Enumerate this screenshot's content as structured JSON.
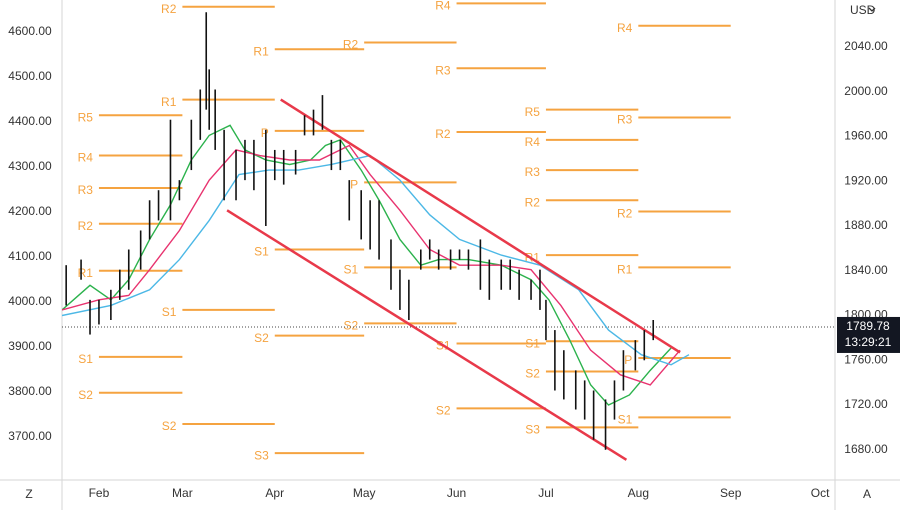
{
  "chart_data": {
    "type": "ohlc",
    "currency": "USD",
    "xlim": [
      18.6,
      278
    ],
    "xticks": [
      {
        "value": 31,
        "label": "Feb"
      },
      {
        "value": 59,
        "label": "Mar"
      },
      {
        "value": 90,
        "label": "Apr"
      },
      {
        "value": 120,
        "label": "May"
      },
      {
        "value": 151,
        "label": "Jun"
      },
      {
        "value": 181,
        "label": "Jul"
      },
      {
        "value": 212,
        "label": "Aug"
      },
      {
        "value": 243,
        "label": "Sep"
      },
      {
        "value": 273,
        "label": "Oct"
      }
    ],
    "ylim": [
      1653,
      2082
    ],
    "yticks": [
      {
        "value": 2040,
        "label": "2040.00"
      },
      {
        "value": 2000,
        "label": "2000.00"
      },
      {
        "value": 1960,
        "label": "1960.00"
      },
      {
        "value": 1920,
        "label": "1920.00"
      },
      {
        "value": 1880,
        "label": "1880.00"
      },
      {
        "value": 1840,
        "label": "1840.00"
      },
      {
        "value": 1800,
        "label": "1800.00"
      },
      {
        "value": 1760,
        "label": "1760.00"
      },
      {
        "value": 1720,
        "label": "1720.00"
      },
      {
        "value": 1680,
        "label": "1680.00"
      }
    ],
    "left_axis": {
      "ylim": [
        3604,
        4671
      ],
      "yticks": [
        {
          "value": 4600,
          "label": "4600.00"
        },
        {
          "value": 4500,
          "label": "4500.00"
        },
        {
          "value": 4400,
          "label": "4400.00"
        },
        {
          "value": 4300,
          "label": "4300.00"
        },
        {
          "value": 4200,
          "label": "4200.00"
        },
        {
          "value": 4100,
          "label": "4100.00"
        },
        {
          "value": 4000,
          "label": "4000.00"
        },
        {
          "value": 3900,
          "label": "3900.00"
        },
        {
          "value": 3800,
          "label": "3800.00"
        },
        {
          "value": 3700,
          "label": "3700.00"
        }
      ]
    },
    "bars": {
      "color": "#111111",
      "x": [
        20,
        25,
        28,
        31,
        35,
        38,
        41,
        45,
        48,
        51,
        55,
        58,
        62,
        65,
        67,
        68,
        70,
        73,
        77,
        80,
        83,
        87,
        90,
        93,
        97,
        100,
        103,
        106,
        109,
        112,
        115,
        119,
        122,
        125,
        129,
        132,
        135,
        139,
        142,
        145,
        149,
        152,
        155,
        159,
        162,
        166,
        169,
        172,
        176,
        179,
        181,
        184,
        187,
        191,
        194,
        197,
        201,
        204,
        207,
        211,
        214,
        217
      ],
      "high": [
        1845,
        1850,
        1814,
        1814,
        1823,
        1841,
        1859,
        1876,
        1903,
        1912,
        1975,
        1921,
        1975,
        2002,
        2071,
        2020,
        2002,
        1966,
        1948,
        1957,
        1957,
        1966,
        1948,
        1948,
        1948,
        1979,
        1984,
        1997,
        1957,
        1957,
        1921,
        1912,
        1903,
        1903,
        1868,
        1841,
        1832,
        1859,
        1868,
        1859,
        1859,
        1859,
        1859,
        1868,
        1850,
        1850,
        1850,
        1841,
        1832,
        1841,
        1814,
        1787,
        1769,
        1751,
        1742,
        1733,
        1725,
        1742,
        1769,
        1778,
        1787,
        1796
      ],
      "low": [
        1809,
        1832,
        1783,
        1792,
        1796,
        1814,
        1823,
        1841,
        1868,
        1885,
        1885,
        1903,
        1930,
        1957,
        1984,
        1966,
        1948,
        1903,
        1903,
        1921,
        1912,
        1880,
        1921,
        1917,
        1926,
        1961,
        1961,
        1966,
        1930,
        1930,
        1885,
        1868,
        1859,
        1850,
        1823,
        1805,
        1796,
        1841,
        1850,
        1841,
        1841,
        1850,
        1841,
        1823,
        1814,
        1823,
        1823,
        1814,
        1814,
        1805,
        1778,
        1733,
        1725,
        1716,
        1707,
        1689,
        1680,
        1707,
        1733,
        1751,
        1760,
        1778
      ]
    },
    "moving_averages": [
      {
        "color": "#2bb24c",
        "x": [
          18.6,
          28,
          35,
          41,
          48,
          55,
          62,
          68,
          75,
          80,
          87,
          95,
          102,
          107,
          112,
          119,
          125,
          132,
          139,
          145,
          155,
          166,
          176,
          182,
          189,
          196,
          202,
          209,
          216,
          223
        ],
        "values": [
          1805,
          1827,
          1814,
          1832,
          1868,
          1899,
          1939,
          1961,
          1970,
          1948,
          1939,
          1935,
          1939,
          1952,
          1957,
          1930,
          1903,
          1868,
          1845,
          1850,
          1850,
          1845,
          1832,
          1814,
          1778,
          1738,
          1720,
          1729,
          1751,
          1771
        ]
      },
      {
        "color": "#e8336f",
        "x": [
          18.6,
          31,
          41,
          48,
          58,
          68,
          77,
          85,
          95,
          105,
          115,
          122,
          132,
          142,
          152,
          166,
          176,
          186,
          196,
          206,
          216,
          226
        ],
        "values": [
          1805,
          1814,
          1818,
          1841,
          1876,
          1921,
          1948,
          1943,
          1939,
          1939,
          1952,
          1926,
          1894,
          1859,
          1845,
          1845,
          1841,
          1809,
          1769,
          1747,
          1738,
          1769
        ]
      },
      {
        "color": "#4cb8e6",
        "x": [
          18.6,
          35,
          48,
          58,
          68,
          78,
          88,
          98,
          109,
          122,
          132,
          142,
          152,
          166,
          179,
          192,
          202,
          213,
          223,
          229
        ],
        "values": [
          1800,
          1809,
          1823,
          1850,
          1885,
          1926,
          1930,
          1930,
          1935,
          1943,
          1921,
          1890,
          1868,
          1854,
          1845,
          1823,
          1787,
          1765,
          1756,
          1765
        ]
      }
    ],
    "channel": [
      {
        "color": "#e8394a",
        "x": [
          92,
          226
        ],
        "values": [
          1993,
          1767
        ]
      },
      {
        "color": "#e8394a",
        "x": [
          74,
          208
        ],
        "values": [
          1894,
          1671
        ]
      }
    ],
    "pivot_color": "#f5a340",
    "pivots": [
      {
        "label": "R5",
        "value": 1979,
        "x": [
          31,
          59
        ]
      },
      {
        "label": "R4",
        "value": 1943,
        "x": [
          31,
          59
        ]
      },
      {
        "label": "R3",
        "value": 1914,
        "x": [
          31,
          59
        ]
      },
      {
        "label": "R2",
        "value": 1882,
        "x": [
          31,
          59
        ]
      },
      {
        "label": "R1",
        "value": 1840,
        "x": [
          31,
          59
        ]
      },
      {
        "label": "S1",
        "value": 1763,
        "x": [
          31,
          59
        ]
      },
      {
        "label": "S2",
        "value": 1731,
        "x": [
          31,
          59
        ]
      },
      {
        "label": "R2",
        "value": 2076,
        "x": [
          59,
          90
        ]
      },
      {
        "label": "R1",
        "value": 1993,
        "x": [
          59,
          90
        ]
      },
      {
        "label": "S1",
        "value": 1805,
        "x": [
          59,
          90
        ]
      },
      {
        "label": "S2",
        "value": 1703,
        "x": [
          59,
          90
        ]
      },
      {
        "label": "R1",
        "value": 2038,
        "x": [
          90,
          120
        ]
      },
      {
        "label": "P",
        "value": 1965,
        "x": [
          90,
          120
        ]
      },
      {
        "label": "S1",
        "value": 1859,
        "x": [
          90,
          120
        ]
      },
      {
        "label": "S2",
        "value": 1782,
        "x": [
          90,
          120
        ]
      },
      {
        "label": "S3",
        "value": 1677,
        "x": [
          90,
          120
        ]
      },
      {
        "label": "R2",
        "value": 2044,
        "x": [
          120,
          151
        ]
      },
      {
        "label": "P",
        "value": 1919,
        "x": [
          120,
          151
        ]
      },
      {
        "label": "S1",
        "value": 1843,
        "x": [
          120,
          151
        ]
      },
      {
        "label": "S2",
        "value": 1793,
        "x": [
          120,
          151
        ]
      },
      {
        "label": "R4",
        "value": 2079,
        "x": [
          151,
          181
        ]
      },
      {
        "label": "R3",
        "value": 2021,
        "x": [
          151,
          181
        ]
      },
      {
        "label": "R2",
        "value": 1964,
        "x": [
          151,
          181
        ]
      },
      {
        "label": "S1",
        "value": 1775,
        "x": [
          151,
          181
        ]
      },
      {
        "label": "S2",
        "value": 1717,
        "x": [
          151,
          181
        ]
      },
      {
        "label": "R5",
        "value": 1984,
        "x": [
          181,
          212
        ]
      },
      {
        "label": "R4",
        "value": 1957,
        "x": [
          181,
          212
        ]
      },
      {
        "label": "R3",
        "value": 1930,
        "x": [
          181,
          212
        ]
      },
      {
        "label": "R2",
        "value": 1903,
        "x": [
          181,
          212
        ]
      },
      {
        "label": "R1",
        "value": 1854,
        "x": [
          181,
          212
        ]
      },
      {
        "label": "S1",
        "value": 1777,
        "x": [
          181,
          212
        ]
      },
      {
        "label": "S2",
        "value": 1750,
        "x": [
          181,
          212
        ]
      },
      {
        "label": "S3",
        "value": 1700,
        "x": [
          181,
          212
        ]
      },
      {
        "label": "R4",
        "value": 2059,
        "x": [
          212,
          243
        ]
      },
      {
        "label": "R3",
        "value": 1977,
        "x": [
          212,
          243
        ]
      },
      {
        "label": "R2",
        "value": 1893,
        "x": [
          212,
          243
        ]
      },
      {
        "label": "R1",
        "value": 1843,
        "x": [
          212,
          243
        ]
      },
      {
        "label": "P",
        "value": 1762,
        "x": [
          212,
          243
        ]
      },
      {
        "label": "S1",
        "value": 1709,
        "x": [
          212,
          243
        ]
      }
    ],
    "last_price": {
      "value": 1789.78,
      "time": "13:29:21"
    },
    "corner_left": "Z",
    "corner_right": "A"
  }
}
